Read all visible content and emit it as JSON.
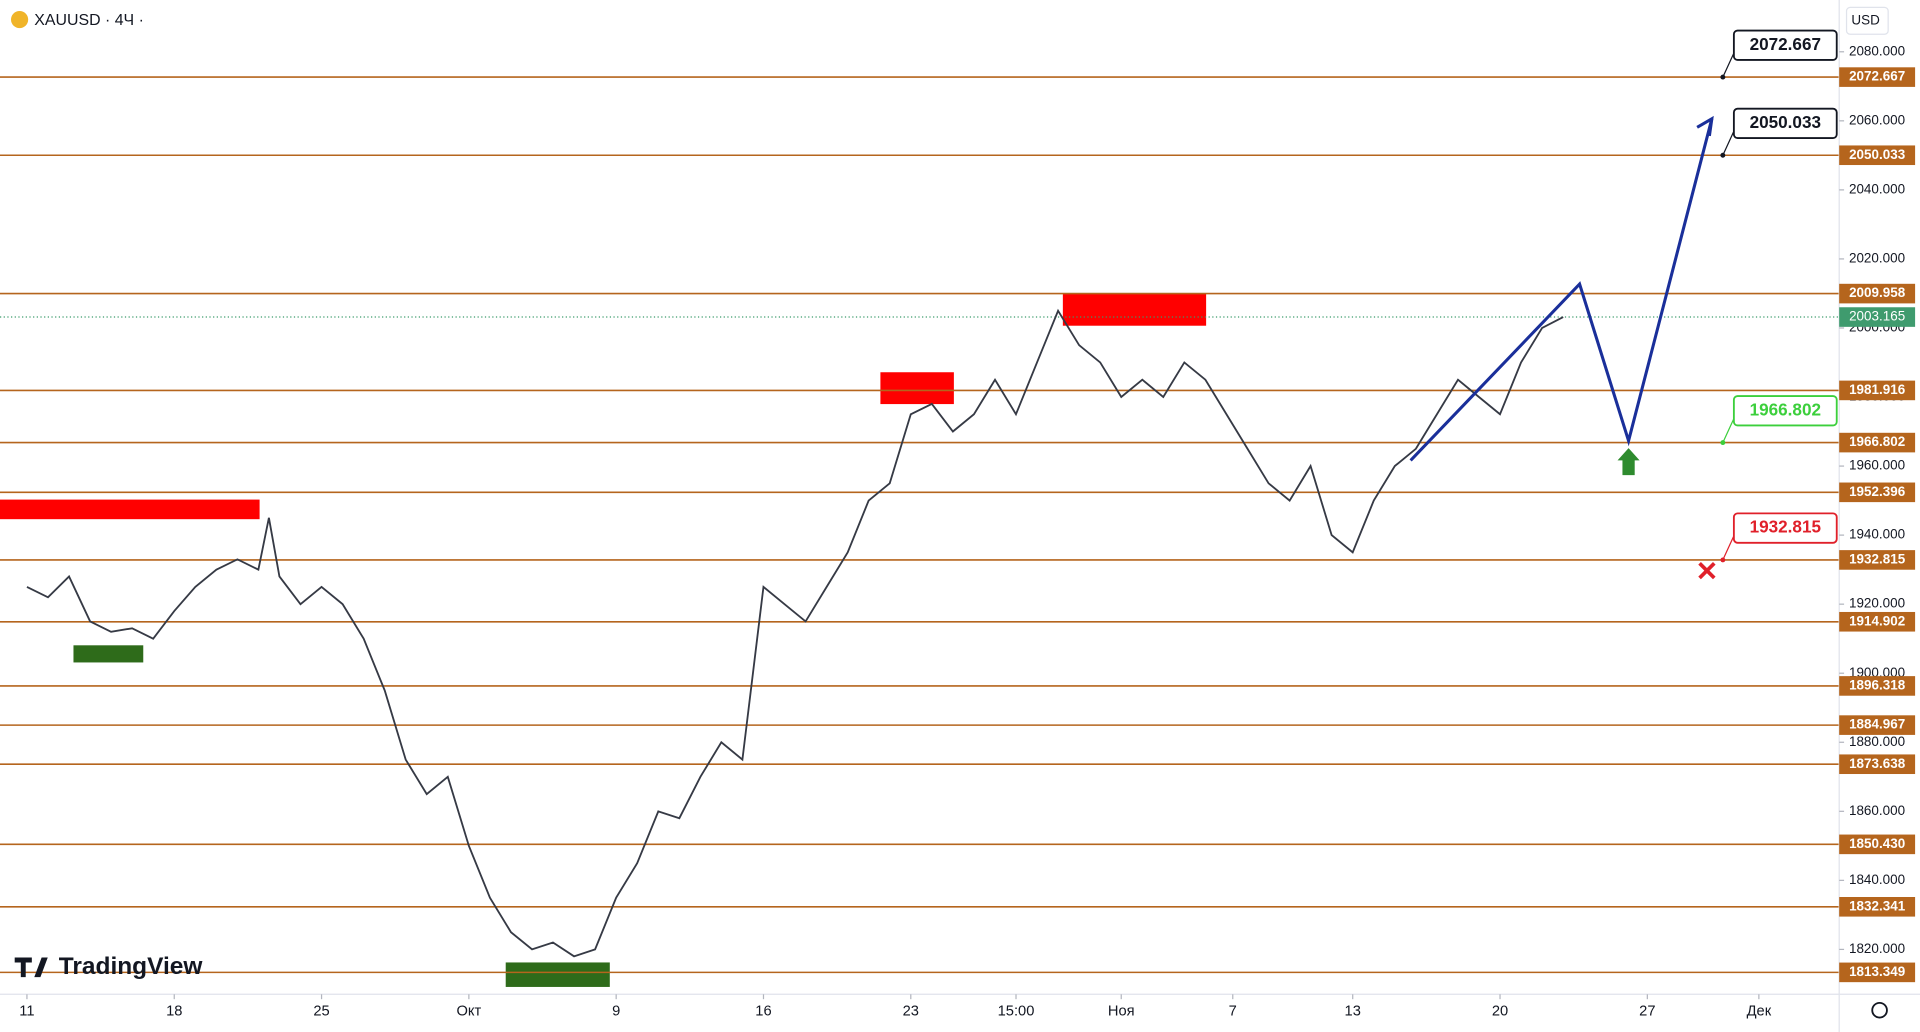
{
  "symbol": "XAUUSD · 4Ч ·",
  "currency": "USD",
  "brand": "TradingView",
  "chart_data": {
    "type": "line",
    "xlim": [
      -1.28,
      86
    ],
    "xticks": [
      {
        "value": 0,
        "label": "11"
      },
      {
        "value": 7,
        "label": "18"
      },
      {
        "value": 14,
        "label": "25"
      },
      {
        "value": 21,
        "label": "Окт"
      },
      {
        "value": 28,
        "label": "9"
      },
      {
        "value": 35,
        "label": "16"
      },
      {
        "value": 42,
        "label": "23"
      },
      {
        "value": 47,
        "label": "15:00"
      },
      {
        "value": 52,
        "label": "Ноя"
      },
      {
        "value": 57.3,
        "label": "7"
      },
      {
        "value": 63,
        "label": "13"
      },
      {
        "value": 70,
        "label": "20"
      },
      {
        "value": 77,
        "label": "27"
      },
      {
        "value": 82.3,
        "label": "Дек"
      }
    ],
    "ylim": [
      1807,
      2095
    ],
    "yticks": [
      {
        "value": 1820,
        "label": "1820.000"
      },
      {
        "value": 1840,
        "label": "1840.000"
      },
      {
        "value": 1860,
        "label": "1860.000"
      },
      {
        "value": 1880,
        "label": "1880.000"
      },
      {
        "value": 1900,
        "label": "1900.000"
      },
      {
        "value": 1920,
        "label": "1920.000"
      },
      {
        "value": 1940,
        "label": "1940.000"
      },
      {
        "value": 1960,
        "label": "1960.000"
      },
      {
        "value": 1980,
        "label": "1980.000"
      },
      {
        "value": 2000,
        "label": "2000.000"
      },
      {
        "value": 2020,
        "label": "2020.000"
      },
      {
        "value": 2040,
        "label": "2040.000"
      },
      {
        "value": 2060,
        "label": "2060.000"
      },
      {
        "value": 2080,
        "label": "2080.000"
      }
    ],
    "series": [
      {
        "name": "XAUUSD",
        "color": "#363a45",
        "x": [
          0,
          1,
          2,
          3,
          4,
          5,
          6,
          7,
          8,
          9,
          10,
          11,
          11.5,
          12,
          13,
          14,
          15,
          16,
          17,
          18,
          19,
          20,
          21,
          22,
          23,
          24,
          25,
          26,
          27,
          28,
          29,
          30,
          31,
          32,
          33,
          34,
          35,
          36,
          37,
          38,
          39,
          40,
          41,
          42,
          43,
          44,
          45,
          46,
          47,
          48,
          49,
          50,
          51,
          52,
          53,
          54,
          55,
          56,
          57,
          58,
          59,
          60,
          61,
          62,
          63,
          64,
          65,
          66,
          67,
          68,
          69,
          70,
          71,
          72,
          73
        ],
        "values": [
          1925,
          1922,
          1928,
          1915,
          1912,
          1913,
          1910,
          1918,
          1925,
          1930,
          1933,
          1930,
          1945,
          1928,
          1920,
          1925,
          1920,
          1910,
          1895,
          1875,
          1865,
          1870,
          1850,
          1835,
          1825,
          1820,
          1822,
          1818,
          1820,
          1835,
          1845,
          1860,
          1858,
          1870,
          1880,
          1875,
          1925,
          1920,
          1915,
          1925,
          1935,
          1950,
          1955,
          1975,
          1978,
          1970,
          1975,
          1985,
          1975,
          1990,
          2005,
          1995,
          1990,
          1980,
          1985,
          1980,
          1990,
          1985,
          1975,
          1965,
          1955,
          1950,
          1960,
          1940,
          1935,
          1950,
          1960,
          1965,
          1975,
          1985,
          1980,
          1975,
          1990,
          2000,
          2003.165
        ]
      }
    ],
    "levels": [
      {
        "value": 2072.667,
        "label": "2072.667"
      },
      {
        "value": 2050.033,
        "label": "2050.033"
      },
      {
        "value": 2009.958,
        "label": "2009.958"
      },
      {
        "value": 1981.916,
        "label": "1981.916"
      },
      {
        "value": 1966.802,
        "label": "1966.802"
      },
      {
        "value": 1952.396,
        "label": "1952.396"
      },
      {
        "value": 1932.815,
        "label": "1932.815"
      },
      {
        "value": 1914.902,
        "label": "1914.902"
      },
      {
        "value": 1896.318,
        "label": "1896.318"
      },
      {
        "value": 1884.967,
        "label": "1884.967"
      },
      {
        "value": 1873.638,
        "label": "1873.638"
      },
      {
        "value": 1850.43,
        "label": "1850.430"
      },
      {
        "value": 1832.341,
        "label": "1832.341"
      },
      {
        "value": 1813.349,
        "label": "1813.349"
      }
    ],
    "level_color": "#b5651d",
    "last_price": {
      "value": 2003.165,
      "label": "2003.165"
    },
    "callouts": [
      {
        "value": 2072.667,
        "label": "2072.667",
        "color": "#131722"
      },
      {
        "value": 2050.033,
        "label": "2050.033",
        "color": "#131722"
      },
      {
        "value": 1966.802,
        "label": "1966.802",
        "color": "#3ccf3c"
      },
      {
        "value": 1932.815,
        "label": "1932.815",
        "color": "#e0202a"
      }
    ]
  }
}
